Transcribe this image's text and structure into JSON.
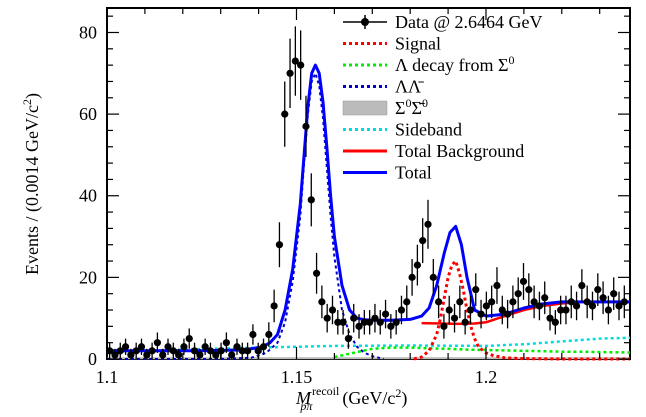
{
  "chart_data": {
    "type": "line",
    "x_axis": {
      "label_main": "M",
      "label_sub": "pπ",
      "label_sup": "recoil",
      "label_unit": "(GeV/c",
      "label_unit_sup": "2",
      "label_unit_close": ")",
      "range": [
        1.1,
        1.238
      ],
      "ticks": [
        {
          "value": 1.1,
          "label": "1.1"
        },
        {
          "value": 1.15,
          "label": "1.15"
        },
        {
          "value": 1.2,
          "label": "1.2"
        }
      ]
    },
    "y_axis": {
      "label_main": "Events / (0.0014 GeV/c",
      "label_sup": "2",
      "label_close": ")",
      "range": [
        0,
        86
      ],
      "ticks": [
        {
          "value": 0,
          "label": "0"
        },
        {
          "value": 20,
          "label": "20"
        },
        {
          "value": 40,
          "label": "40"
        },
        {
          "value": 60,
          "label": "60"
        },
        {
          "value": 80,
          "label": "80"
        }
      ]
    },
    "legend_position": "top-right",
    "legend": [
      {
        "key": "data",
        "label": "Data @ 2.6464 GeV",
        "style": "point",
        "color": "#000000"
      },
      {
        "key": "signal",
        "label": "Signal",
        "style": "dotted",
        "color": "#ff0000"
      },
      {
        "key": "lambda_decay",
        "label": "Λ decay from Σ",
        "label_sup": "0",
        "style": "dotted",
        "color": "#00ee00"
      },
      {
        "key": "lambda_lambdabar",
        "label": "ΛΛ̄",
        "style": "dotted",
        "color": "#0000cc"
      },
      {
        "key": "sigma_sigmabar",
        "label": "Σ",
        "label_sup": "0",
        "label_mid": "Σ̄",
        "label_sup2": "0",
        "style": "band",
        "color": "#bbbbbb"
      },
      {
        "key": "sideband",
        "label": "Sideband",
        "style": "dotted",
        "color": "#00dddd"
      },
      {
        "key": "total_background",
        "label": "Total Background",
        "style": "solid",
        "color": "#ff0000"
      },
      {
        "key": "total",
        "label": "Total",
        "style": "solid",
        "color": "#0000ff"
      }
    ],
    "series": [
      {
        "key": "data",
        "x": [
          1.1007,
          1.1021,
          1.1035,
          1.1049,
          1.1063,
          1.1077,
          1.1091,
          1.1105,
          1.1119,
          1.1133,
          1.1147,
          1.1161,
          1.1175,
          1.1189,
          1.1203,
          1.1217,
          1.1231,
          1.1245,
          1.1259,
          1.1273,
          1.1287,
          1.1301,
          1.1315,
          1.1329,
          1.1343,
          1.1357,
          1.1371,
          1.1385,
          1.1399,
          1.1413,
          1.1427,
          1.1441,
          1.1455,
          1.1469,
          1.1483,
          1.1497,
          1.1511,
          1.1525,
          1.1539,
          1.1553,
          1.1567,
          1.1581,
          1.1595,
          1.1609,
          1.1623,
          1.1637,
          1.1651,
          1.1665,
          1.1679,
          1.1693,
          1.1707,
          1.1721,
          1.1735,
          1.1749,
          1.1763,
          1.1777,
          1.1791,
          1.1805,
          1.1819,
          1.1833,
          1.1847,
          1.1861,
          1.1875,
          1.1889,
          1.1903,
          1.1917,
          1.1931,
          1.1945,
          1.1959,
          1.1973,
          1.1987,
          1.2001,
          1.2015,
          1.2029,
          1.2043,
          1.2057,
          1.2071,
          1.2085,
          1.2099,
          1.2113,
          1.2127,
          1.2141,
          1.2155,
          1.2169,
          1.2183,
          1.2197,
          1.2211,
          1.2225,
          1.2239,
          1.2253,
          1.2267,
          1.2281,
          1.2295,
          1.2309,
          1.2323,
          1.2337,
          1.2351,
          1.2365
        ],
        "y": [
          2,
          1,
          2,
          3,
          1,
          2,
          3,
          1,
          2,
          4,
          1,
          3,
          2,
          1,
          3,
          5,
          2,
          1,
          3,
          2,
          1,
          2,
          4,
          1,
          3,
          2,
          2,
          6,
          2,
          3,
          6,
          13,
          28,
          60,
          70,
          73,
          72,
          57,
          39,
          21,
          14,
          10,
          12,
          9,
          9,
          5,
          10,
          8,
          9,
          9,
          10,
          9,
          11,
          8,
          9,
          12,
          14,
          20,
          23,
          29,
          33,
          20,
          14,
          8,
          12,
          10,
          14,
          9,
          12,
          17,
          11,
          13,
          14,
          18,
          12,
          11,
          14,
          16,
          19,
          17,
          14,
          13,
          15,
          10,
          9,
          12,
          12,
          14,
          13,
          18,
          14,
          13,
          17,
          15,
          12,
          16,
          13,
          14
        ],
        "err": [
          2,
          1.5,
          2,
          2,
          1.5,
          2,
          2,
          1.5,
          2,
          2.5,
          1.5,
          2,
          2,
          1.5,
          2,
          2.5,
          2,
          1.5,
          2,
          2,
          1.5,
          2,
          2.5,
          1.5,
          2,
          2,
          2,
          2.5,
          2,
          2,
          3,
          4,
          5.5,
          8,
          8.5,
          8.5,
          8.5,
          7.5,
          6.5,
          5,
          4,
          3.5,
          3.5,
          3,
          3,
          2.5,
          3.5,
          3,
          3,
          3,
          3.5,
          3,
          3.5,
          3,
          3,
          3.5,
          4,
          4.5,
          5,
          5.5,
          6,
          4.5,
          4,
          3,
          3.5,
          3.5,
          4,
          3,
          3.5,
          4,
          3.5,
          3.5,
          4,
          4.5,
          3.5,
          3.5,
          4,
          4,
          4.5,
          4,
          4,
          3.5,
          4,
          3,
          3,
          3.5,
          3.5,
          4,
          3.5,
          4,
          4,
          3.5,
          4,
          4,
          3.5,
          4,
          3.5,
          4
        ]
      },
      {
        "key": "total",
        "x": [
          1.1,
          1.105,
          1.11,
          1.115,
          1.12,
          1.125,
          1.13,
          1.135,
          1.138,
          1.141,
          1.143,
          1.145,
          1.147,
          1.149,
          1.151,
          1.152,
          1.153,
          1.154,
          1.155,
          1.156,
          1.157,
          1.158,
          1.159,
          1.16,
          1.162,
          1.164,
          1.166,
          1.168,
          1.17,
          1.175,
          1.18,
          1.183,
          1.185,
          1.187,
          1.189,
          1.1905,
          1.192,
          1.1935,
          1.195,
          1.197,
          1.2,
          1.205,
          1.21,
          1.215,
          1.22,
          1.225,
          1.23,
          1.238
        ],
        "y": [
          2,
          2,
          2,
          2,
          2,
          2,
          2.1,
          2.2,
          2.5,
          3,
          4,
          6,
          12,
          22,
          38,
          50,
          62,
          70,
          72,
          70,
          63,
          52,
          40,
          30,
          18,
          12,
          10,
          9.6,
          9.5,
          9.5,
          9.7,
          10.5,
          12.5,
          18,
          26,
          31,
          32.5,
          28,
          20,
          12,
          10.5,
          11,
          12.5,
          13.5,
          14,
          14,
          14,
          14
        ]
      },
      {
        "key": "total_background",
        "x": [
          1.183,
          1.188,
          1.193,
          1.197,
          1.2,
          1.205,
          1.21,
          1.215,
          1.22,
          1.225,
          1.23,
          1.238
        ],
        "y": [
          8.8,
          8.7,
          8.6,
          8.7,
          9,
          10.5,
          12,
          13,
          13.6,
          14,
          14,
          14
        ]
      },
      {
        "key": "signal",
        "x": [
          1.181,
          1.183,
          1.185,
          1.187,
          1.188,
          1.189,
          1.19,
          1.191,
          1.192,
          1.193,
          1.194,
          1.195,
          1.196,
          1.197,
          1.198,
          1.2,
          1.202,
          1.205,
          1.21,
          1.22,
          1.23,
          1.238
        ],
        "y": [
          0,
          0.5,
          2,
          6,
          10,
          15,
          20,
          23,
          24,
          21,
          17,
          12,
          8,
          5,
          3,
          1.5,
          0.8,
          0.3,
          0.1,
          0,
          0,
          0
        ]
      },
      {
        "key": "lambda_lambdabar",
        "x": [
          1.1,
          1.13,
          1.138,
          1.142,
          1.145,
          1.147,
          1.149,
          1.151,
          1.152,
          1.153,
          1.154,
          1.155,
          1.156,
          1.157,
          1.158,
          1.159,
          1.16,
          1.162,
          1.164,
          1.166,
          1.168,
          1.17,
          1.173
        ],
        "y": [
          0,
          0,
          0.3,
          1.5,
          4,
          9,
          19,
          35,
          48,
          60,
          68,
          70,
          67,
          59,
          47,
          35,
          25,
          12,
          6,
          3,
          1.5,
          0.7,
          0
        ]
      },
      {
        "key": "lambda_decay",
        "x": [
          1.16,
          1.165,
          1.17,
          1.175,
          1.18,
          1.185,
          1.19,
          1.195,
          1.2,
          1.205,
          1.21,
          1.215,
          1.22,
          1.225,
          1.23,
          1.238
        ],
        "y": [
          0.5,
          1.5,
          2.5,
          2.8,
          2.8,
          2.6,
          2.5,
          2.3,
          2.2,
          2.1,
          2,
          1.9,
          1.8,
          1.8,
          1.7,
          1.6
        ]
      },
      {
        "key": "sideband",
        "x": [
          1.1,
          1.12,
          1.14,
          1.16,
          1.18,
          1.2,
          1.21,
          1.22,
          1.23,
          1.238
        ],
        "y": [
          1.8,
          2.3,
          2.8,
          3.2,
          3.3,
          3.2,
          3.6,
          4.3,
          5,
          5.2
        ]
      },
      {
        "key": "sigma_sigmabar",
        "x": [
          1.1,
          1.12,
          1.14,
          1.16,
          1.18,
          1.2,
          1.22,
          1.238
        ],
        "y": [
          0.2,
          0.2,
          0.2,
          0.2,
          0.2,
          0.2,
          0.2,
          0.2
        ]
      }
    ]
  }
}
